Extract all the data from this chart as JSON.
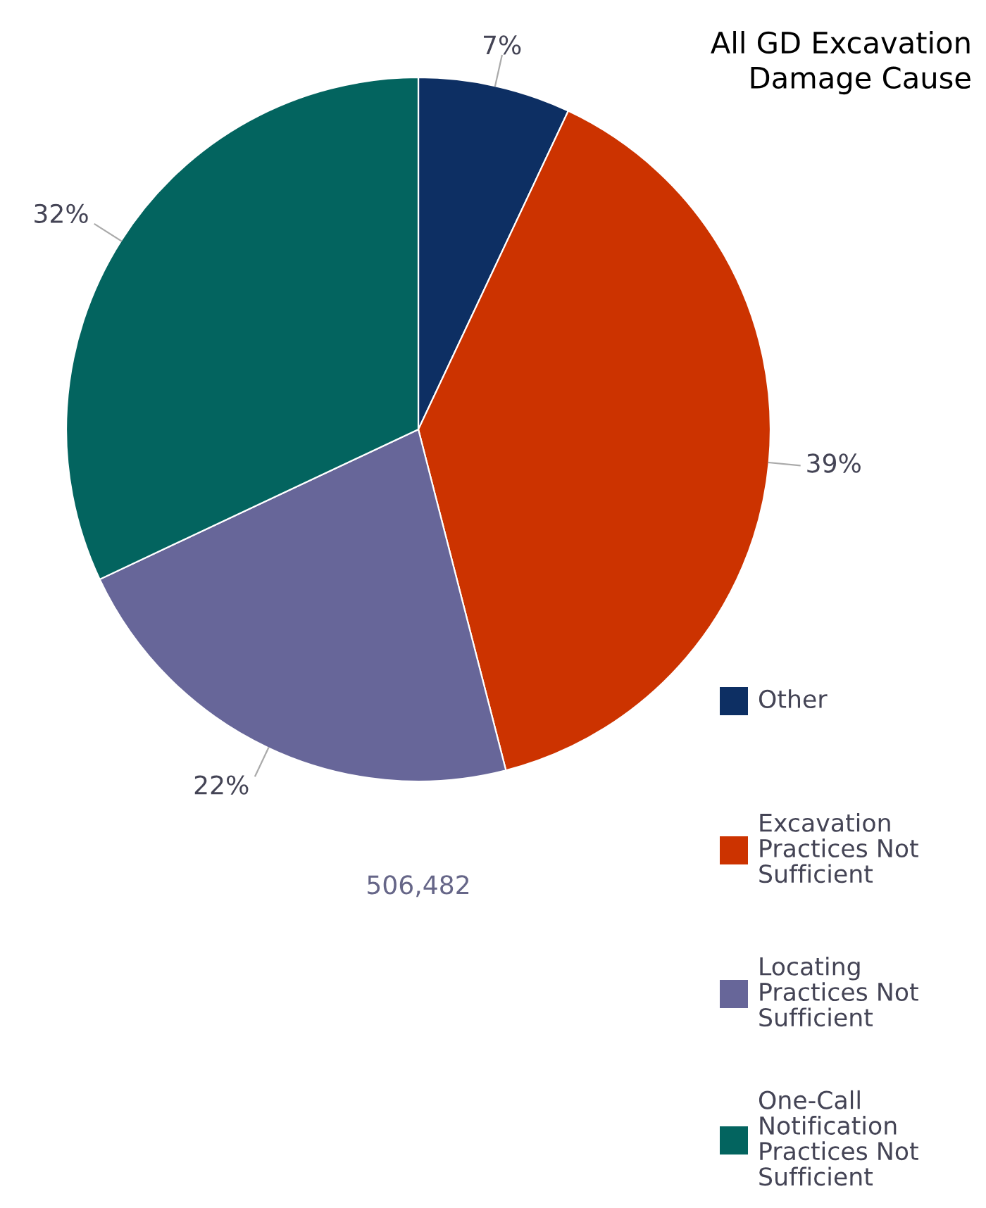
{
  "chart_data": {
    "type": "pie",
    "title": "All GD Excavation\nDamage Cause",
    "categories": [
      "Other",
      "Excavation\nPractices Not\nSufficient",
      "Locating\nPractices Not\nSufficient",
      "One-Call\nNotification\nPractices Not\nSufficient"
    ],
    "values": [
      7,
      39,
      22,
      32
    ],
    "colors": [
      "#0d2f63",
      "#cc3300",
      "#676699",
      "#03645f"
    ],
    "value_labels": [
      "7%",
      "39%",
      "22%",
      "32%"
    ],
    "annotations": [
      "506,482"
    ],
    "legend": "bottom right"
  }
}
